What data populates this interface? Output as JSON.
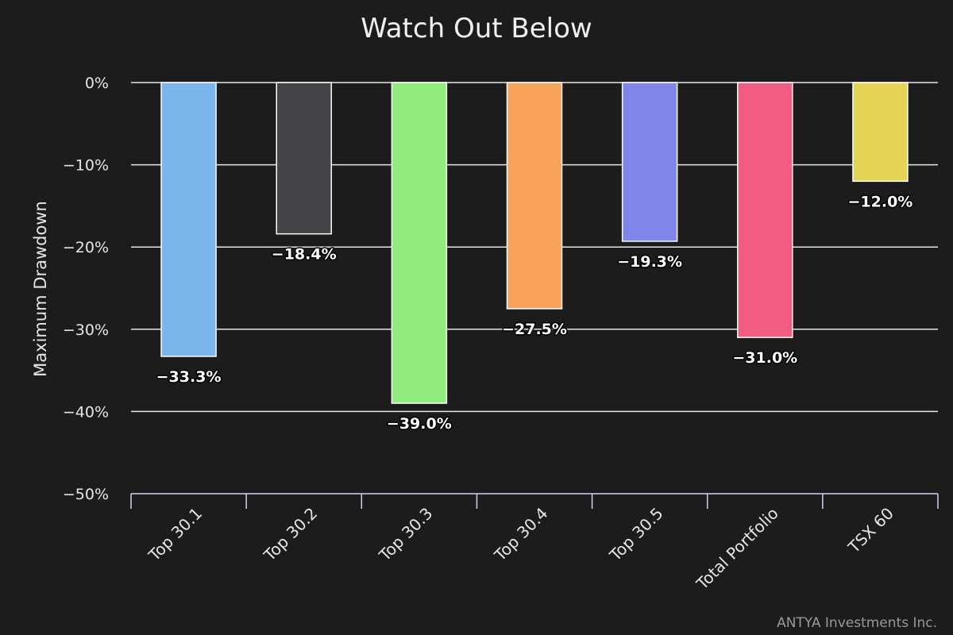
{
  "chart_data": {
    "type": "bar",
    "title": "Watch Out Below",
    "ylabel": "Maximum Drawdown",
    "xlabel": "",
    "categories": [
      "Top 30.1",
      "Top 30.2",
      "Top 30.3",
      "Top 30.4",
      "Top 30.5",
      "Total Portfolio",
      "TSX 60"
    ],
    "values": [
      -33.3,
      -18.4,
      -39.0,
      -27.5,
      -19.3,
      -31.0,
      -12.0
    ],
    "data_labels": [
      "−33.3%",
      "−18.4%",
      "−39.0%",
      "−27.5%",
      "−19.3%",
      "−31.0%",
      "−12.0%"
    ],
    "colors": [
      "#7cb5ec",
      "#434348",
      "#90ed7d",
      "#f7a35c",
      "#8085e9",
      "#f15c80",
      "#e4d354"
    ],
    "ylim": [
      -50,
      0
    ],
    "yticks": [
      0,
      -10,
      -20,
      -30,
      -40,
      -50
    ],
    "ytick_labels": [
      "0%",
      "−10%",
      "−20%",
      "−30%",
      "−40%",
      "−50%"
    ],
    "grid": true,
    "background": "#1c1c1c",
    "gridline_color": "#e6e6e6",
    "bar_border_color": "#ffffff",
    "credit": "ANTYA Investments Inc."
  }
}
